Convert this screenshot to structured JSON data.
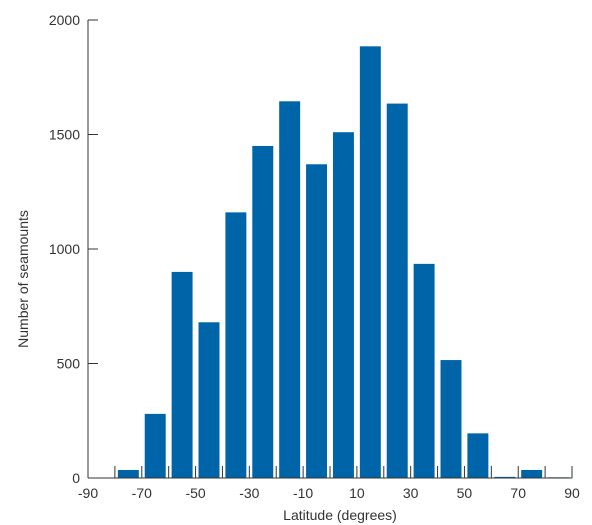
{
  "chart_data": {
    "type": "bar",
    "title": "",
    "xlabel": "Latitude (degrees)",
    "ylabel": "Number of seamounts",
    "bar_color": "#0064a8",
    "xlim": [
      -90,
      90
    ],
    "ylim": [
      0,
      2000
    ],
    "x_ticks": [
      -90,
      -70,
      -50,
      -30,
      -10,
      10,
      30,
      50,
      70,
      90
    ],
    "y_ticks": [
      0,
      500,
      1000,
      1500,
      2000
    ],
    "bin_width": 10,
    "bins": [
      {
        "center": -75,
        "value": 35
      },
      {
        "center": -65,
        "value": 280
      },
      {
        "center": -55,
        "value": 900
      },
      {
        "center": -45,
        "value": 680
      },
      {
        "center": -35,
        "value": 1160
      },
      {
        "center": -25,
        "value": 1450
      },
      {
        "center": -15,
        "value": 1645
      },
      {
        "center": -5,
        "value": 1370
      },
      {
        "center": 5,
        "value": 1510
      },
      {
        "center": 15,
        "value": 1885
      },
      {
        "center": 25,
        "value": 1635
      },
      {
        "center": 35,
        "value": 935
      },
      {
        "center": 45,
        "value": 515
      },
      {
        "center": 55,
        "value": 195
      },
      {
        "center": 65,
        "value": 5
      },
      {
        "center": 75,
        "value": 35
      },
      {
        "center": 85,
        "value": 3
      }
    ],
    "grid": false,
    "legend": "none"
  }
}
